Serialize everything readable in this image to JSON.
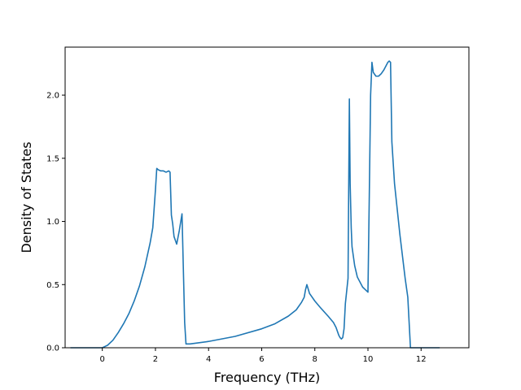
{
  "chart_data": {
    "type": "line",
    "title": "",
    "xlabel": "Frequency (THz)",
    "ylabel": "Density of States",
    "xlim": [
      -1.4,
      13.8
    ],
    "ylim": [
      0.0,
      2.38
    ],
    "xticks": [
      0,
      2,
      4,
      6,
      8,
      10,
      12
    ],
    "xtick_labels": [
      "0",
      "2",
      "4",
      "6",
      "8",
      "10",
      "12"
    ],
    "yticks": [
      0.0,
      0.5,
      1.0,
      1.5,
      2.0
    ],
    "ytick_labels": [
      "0.0",
      "0.5",
      "1.0",
      "1.5",
      "2.0"
    ],
    "grid": false,
    "line_color": "#1f77b4",
    "series": [
      {
        "x": [
          -1.2,
          0.0,
          0.2,
          0.4,
          0.6,
          0.8,
          1.0,
          1.2,
          1.4,
          1.6,
          1.8,
          1.9,
          1.95,
          2.0,
          2.05,
          2.1,
          2.2,
          2.3,
          2.4,
          2.5,
          2.55,
          2.6,
          2.65,
          2.7,
          2.8,
          2.9,
          3.0,
          3.1,
          3.15,
          3.3,
          4.0,
          5.0,
          6.0,
          6.5,
          7.0,
          7.3,
          7.5,
          7.6,
          7.65,
          7.7,
          7.8,
          8.0,
          8.2,
          8.5,
          8.7,
          8.8,
          8.9,
          8.95,
          9.0,
          9.05,
          9.1,
          9.15,
          9.2,
          9.25,
          9.3,
          9.33,
          9.37,
          9.4,
          9.5,
          9.6,
          9.8,
          10.0,
          10.05,
          10.1,
          10.15,
          10.2,
          10.3,
          10.4,
          10.5,
          10.6,
          10.7,
          10.75,
          10.8,
          10.85,
          10.9,
          11.0,
          11.2,
          11.4,
          11.5,
          11.6,
          11.7,
          12.7
        ],
        "y": [
          0.0,
          0.0,
          0.02,
          0.06,
          0.12,
          0.19,
          0.27,
          0.37,
          0.49,
          0.64,
          0.83,
          0.95,
          1.1,
          1.25,
          1.42,
          1.41,
          1.4,
          1.4,
          1.39,
          1.4,
          1.39,
          1.05,
          0.98,
          0.88,
          0.82,
          0.93,
          1.06,
          0.2,
          0.03,
          0.03,
          0.05,
          0.09,
          0.15,
          0.19,
          0.25,
          0.3,
          0.36,
          0.4,
          0.46,
          0.5,
          0.43,
          0.37,
          0.32,
          0.25,
          0.2,
          0.16,
          0.1,
          0.08,
          0.07,
          0.08,
          0.15,
          0.35,
          0.45,
          0.55,
          1.97,
          1.3,
          0.95,
          0.8,
          0.65,
          0.56,
          0.48,
          0.44,
          1.2,
          2.0,
          2.26,
          2.18,
          2.15,
          2.15,
          2.17,
          2.2,
          2.24,
          2.26,
          2.27,
          2.26,
          1.63,
          1.3,
          0.9,
          0.55,
          0.4,
          0.0,
          0.0,
          0.0
        ]
      }
    ]
  }
}
